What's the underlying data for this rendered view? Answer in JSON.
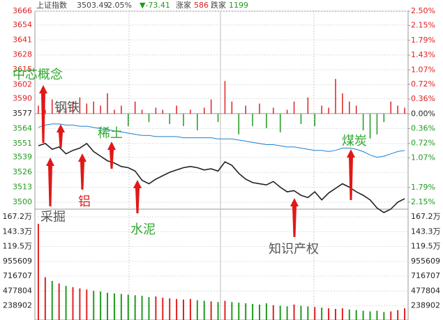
{
  "header": {
    "name": "上证指数",
    "price": 3503.49,
    "change_pct": "-2.05%",
    "change": "▼-73.41",
    "up_label": "涨家",
    "up_count": 586,
    "down_label": "跌家",
    "down_count": 1199
  },
  "chart_data": {
    "type": "line",
    "up_color": "#e02020",
    "down_color": "#1f9a1f",
    "grid": true,
    "ylim": [
      3500,
      3666
    ],
    "yticks": [
      3666,
      3654,
      3641,
      3628,
      3615,
      3602,
      3590,
      3577,
      3564,
      3551,
      3539,
      3526,
      3513,
      3500
    ],
    "y2lim": [
      -2.15,
      2.5
    ],
    "y2ticks": [
      {
        "value": 2.5,
        "label": "2.50%"
      },
      {
        "value": 2.15,
        "label": "2.15%"
      },
      {
        "value": 1.79,
        "label": "1.79%"
      },
      {
        "value": 1.43,
        "label": "1.43%"
      },
      {
        "value": 1.07,
        "label": "1.07%"
      },
      {
        "value": 0.72,
        "label": "0.72%"
      },
      {
        "value": 0.36,
        "label": "0.36%"
      },
      {
        "value": 0,
        "label": "0.00%"
      },
      {
        "value": -0.36,
        "label": "0.36%"
      },
      {
        "value": -0.72,
        "label": "0.72%"
      },
      {
        "value": -1.07,
        "label": "1.07%"
      },
      {
        "value": -1.79,
        "label": "1.79%"
      },
      {
        "value": -2.15,
        "label": "2.15%"
      }
    ],
    "series": [
      {
        "color": "#222222",
        "values": [
          3549,
          3551,
          3546,
          3548,
          3542,
          3545,
          3547,
          3551,
          3544,
          3540,
          3536,
          3534,
          3531,
          3530,
          3527,
          3519,
          3516,
          3520,
          3523,
          3526,
          3528,
          3530,
          3531,
          3530,
          3528,
          3529,
          3527,
          3535,
          3532,
          3525,
          3520,
          3517,
          3516,
          3515,
          3518,
          3513,
          3509,
          3510,
          3506,
          3504,
          3509,
          3502,
          3508,
          3512,
          3516,
          3513,
          3509,
          3506,
          3502,
          3495,
          3491,
          3494,
          3500,
          3503
        ]
      },
      {
        "color": "#1a7fd0",
        "values": [
          3565,
          3567,
          3568,
          3568,
          3567,
          3567,
          3566,
          3566,
          3565,
          3564,
          3563,
          3562,
          3561,
          3560,
          3559,
          3558,
          3558,
          3557,
          3557,
          3557,
          3557,
          3556,
          3556,
          3556,
          3556,
          3556,
          3555,
          3555,
          3555,
          3554,
          3553,
          3552,
          3551,
          3550,
          3550,
          3549,
          3548,
          3548,
          3547,
          3546,
          3545,
          3545,
          3544,
          3545,
          3547,
          3547,
          3546,
          3544,
          3541,
          3539,
          3540,
          3542,
          3544,
          3545
        ]
      },
      {
        "axis": "y2",
        "values": [
          0.2,
          0.1,
          0.35,
          0.1,
          0.15,
          0.3,
          0.4,
          0.25,
          0.3,
          0.2,
          0.5,
          0.1,
          0.2,
          -0.3,
          0.3,
          0.1,
          -0.2,
          0.15,
          0.1,
          -0.25,
          0.2,
          -0.3,
          0.1,
          -0.4,
          0.15,
          0.35,
          -0.2,
          0.8,
          0.3,
          -0.5,
          0.2,
          -0.3,
          0.25,
          -0.35,
          0.15,
          -0.45,
          0.1,
          0.3,
          -0.25,
          0.4,
          -0.3,
          0.2,
          0.15,
          0.85,
          0.5,
          0.3,
          0.2,
          -0.4,
          -0.6,
          -0.5,
          -0.2,
          0.3,
          0.2,
          0.15
        ]
      }
    ],
    "volume": {
      "vlim": [
        0,
        1672000
      ],
      "vticks": [
        {
          "value": 1672000,
          "label": "167.2万"
        },
        {
          "value": 1433000,
          "label": "143.3万"
        },
        {
          "value": 1195000,
          "label": "119.5万"
        },
        955609,
        716707,
        477804,
        238902
      ],
      "values": [
        1560000,
        700000,
        640000,
        600000,
        560000,
        540000,
        520000,
        500000,
        480000,
        470000,
        450000,
        440000,
        430000,
        420000,
        410000,
        400000,
        380000,
        390000,
        370000,
        360000,
        350000,
        340000,
        350000,
        330000,
        320000,
        310000,
        300000,
        320000,
        300000,
        290000,
        280000,
        270000,
        260000,
        280000,
        250000,
        240000,
        230000,
        260000,
        240000,
        230000,
        220000,
        210000,
        200000,
        190000,
        200000,
        180000,
        170000,
        160000,
        150000,
        160000,
        140000,
        150000,
        170000,
        200000
      ]
    },
    "annotations": [
      {
        "text": "中芯概念",
        "color": "#2ea82e"
      },
      {
        "text": "钢铁",
        "color": "#555555"
      },
      {
        "text": "稀土",
        "color": "#2ea82e"
      },
      {
        "text": "煤炭",
        "color": "#2ea82e"
      },
      {
        "text": "采掘",
        "color": "#555555"
      },
      {
        "text": "铝",
        "color": "#e02020"
      },
      {
        "text": "水泥",
        "color": "#2ea82e"
      },
      {
        "text": "知识产权",
        "color": "#555555"
      }
    ]
  }
}
